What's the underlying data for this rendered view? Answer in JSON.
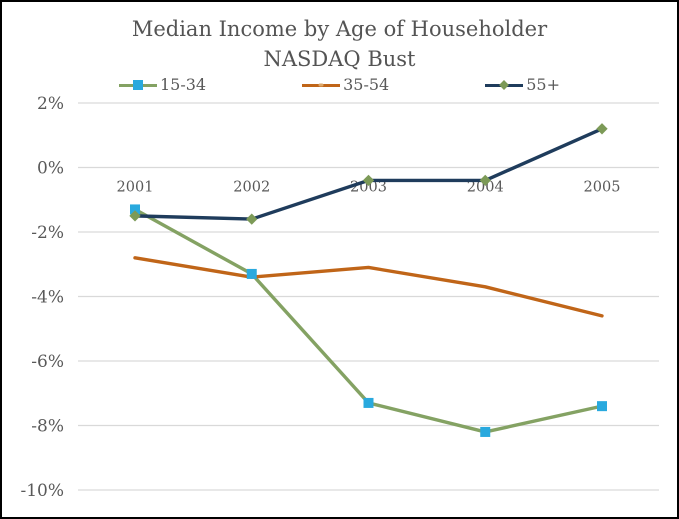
{
  "chart_data": {
    "type": "line",
    "title": "Median Income by Age of Householder",
    "subtitle": "NASDAQ Bust",
    "categories": [
      "2001",
      "2002",
      "2003",
      "2004",
      "2005"
    ],
    "series": [
      {
        "name": "15-34",
        "values": [
          -1.3,
          -3.3,
          -7.3,
          -8.2,
          -7.4
        ],
        "line_color": "#84A263",
        "marker": "square",
        "marker_color": "#29A9DE"
      },
      {
        "name": "35-54",
        "values": [
          -2.8,
          -3.4,
          -3.1,
          -3.7,
          -4.6
        ],
        "line_color": "#C06518",
        "marker": "dot",
        "marker_color": "#DBA668"
      },
      {
        "name": "55+",
        "values": [
          -1.5,
          -1.6,
          -0.4,
          -0.4,
          1.2
        ],
        "line_color": "#1F3C5C",
        "marker": "diamond",
        "marker_color": "#7C9A57"
      }
    ],
    "xlabel": "",
    "ylabel": "",
    "ylim": [
      -10,
      2
    ],
    "ytick_step": 2,
    "ytick_labels": [
      "2%",
      "0%",
      "-2%",
      "-4%",
      "-6%",
      "-8%",
      "-10%"
    ],
    "grid": true,
    "legend_position": "top"
  },
  "colors": {
    "gridline": "#D9D9D9",
    "tick_text": "#595959",
    "title_text": "#545454",
    "background": "#FFFFFF",
    "frame_border": "#000000"
  }
}
